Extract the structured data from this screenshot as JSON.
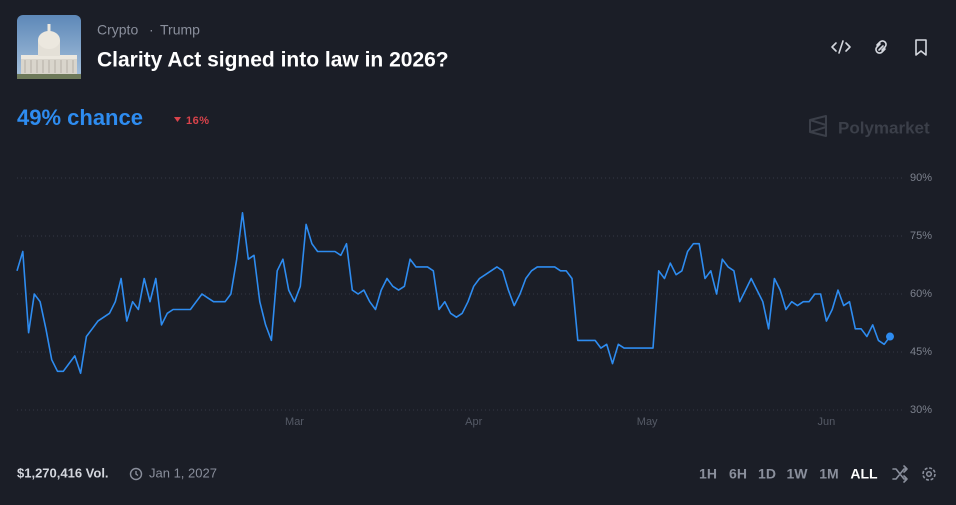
{
  "header": {
    "breadcrumb": [
      "Crypto",
      "Trump"
    ],
    "separator": "·",
    "title": "Clarity Act signed into law in 2026?",
    "chance": "49% chance",
    "change": "16%",
    "brand": "Polymarket"
  },
  "footer": {
    "volume": "$1,270,416 Vol.",
    "end_date": "Jan 1, 2027",
    "ranges": [
      "1H",
      "6H",
      "1D",
      "1W",
      "1M",
      "ALL"
    ],
    "selected_range": "ALL"
  },
  "chart_data": {
    "type": "line",
    "color": "#2e8cf0",
    "grid": true,
    "categories": [
      null,
      null,
      null,
      null,
      null,
      null,
      null,
      null,
      null,
      null,
      null,
      null,
      null,
      null,
      null,
      null,
      null,
      null,
      null,
      null,
      null,
      null,
      null,
      null,
      null,
      null,
      null,
      null,
      null,
      null,
      null,
      null,
      null,
      null,
      null,
      null,
      null,
      null,
      null,
      null,
      null,
      null,
      null,
      null,
      null,
      null,
      null,
      null,
      "Mar",
      null,
      null,
      null,
      null,
      null,
      null,
      null,
      null,
      null,
      null,
      null,
      null,
      null,
      null,
      null,
      null,
      null,
      null,
      null,
      null,
      null,
      null,
      null,
      null,
      null,
      null,
      null,
      null,
      null,
      null,
      "Apr",
      null,
      null,
      null,
      null,
      null,
      null,
      null,
      null,
      null,
      null,
      null,
      null,
      null,
      null,
      null,
      null,
      null,
      null,
      null,
      null,
      null,
      null,
      null,
      null,
      null,
      null,
      null,
      null,
      null,
      "May",
      null,
      null,
      null,
      null,
      null,
      null,
      null,
      null,
      null,
      null,
      null,
      null,
      null,
      null,
      null,
      null,
      null,
      null,
      null,
      null,
      null,
      null,
      null,
      null,
      null,
      null,
      null,
      null,
      null,
      null,
      "Jun",
      null,
      null,
      null,
      null,
      null,
      null,
      null,
      null,
      null,
      null,
      null
    ],
    "values": [
      66,
      71,
      50,
      60,
      58,
      51,
      43,
      40,
      40,
      42,
      44,
      39.5,
      49,
      51,
      53,
      54,
      55,
      58,
      64,
      53,
      58,
      56,
      64,
      58,
      64,
      52,
      55,
      56,
      56,
      56,
      56,
      58,
      60,
      59,
      58,
      58,
      58,
      60,
      69,
      81,
      69,
      70,
      58,
      52,
      48,
      66,
      69,
      61,
      58,
      62,
      78,
      73,
      71,
      71,
      71,
      71,
      70,
      73,
      61,
      60,
      61,
      58,
      56,
      61,
      64,
      62,
      61,
      62,
      69,
      67,
      67,
      67,
      66,
      56,
      58,
      55,
      54,
      55,
      58,
      62,
      64,
      65,
      66,
      67,
      66,
      61,
      57,
      60,
      64,
      66,
      67,
      67,
      67,
      67,
      66,
      66,
      64,
      48,
      48,
      48,
      48,
      46,
      47,
      42,
      47,
      46,
      46,
      46,
      46,
      46,
      46,
      66,
      64,
      68,
      65,
      66,
      71,
      73,
      73,
      64,
      66,
      60,
      69,
      67,
      66,
      58,
      61,
      64,
      61,
      58,
      51,
      64,
      61,
      56,
      58,
      57,
      58,
      58,
      60,
      60,
      53,
      56,
      61,
      57,
      58,
      51,
      51,
      49,
      52,
      48,
      47,
      49
    ],
    "ylim": [
      30,
      90
    ],
    "yticks": [
      {
        "value": 30,
        "label": "30%"
      },
      {
        "value": 45,
        "label": "45%"
      },
      {
        "value": 60,
        "label": "60%"
      },
      {
        "value": 75,
        "label": "75%"
      },
      {
        "value": 90,
        "label": "90%"
      }
    ]
  }
}
